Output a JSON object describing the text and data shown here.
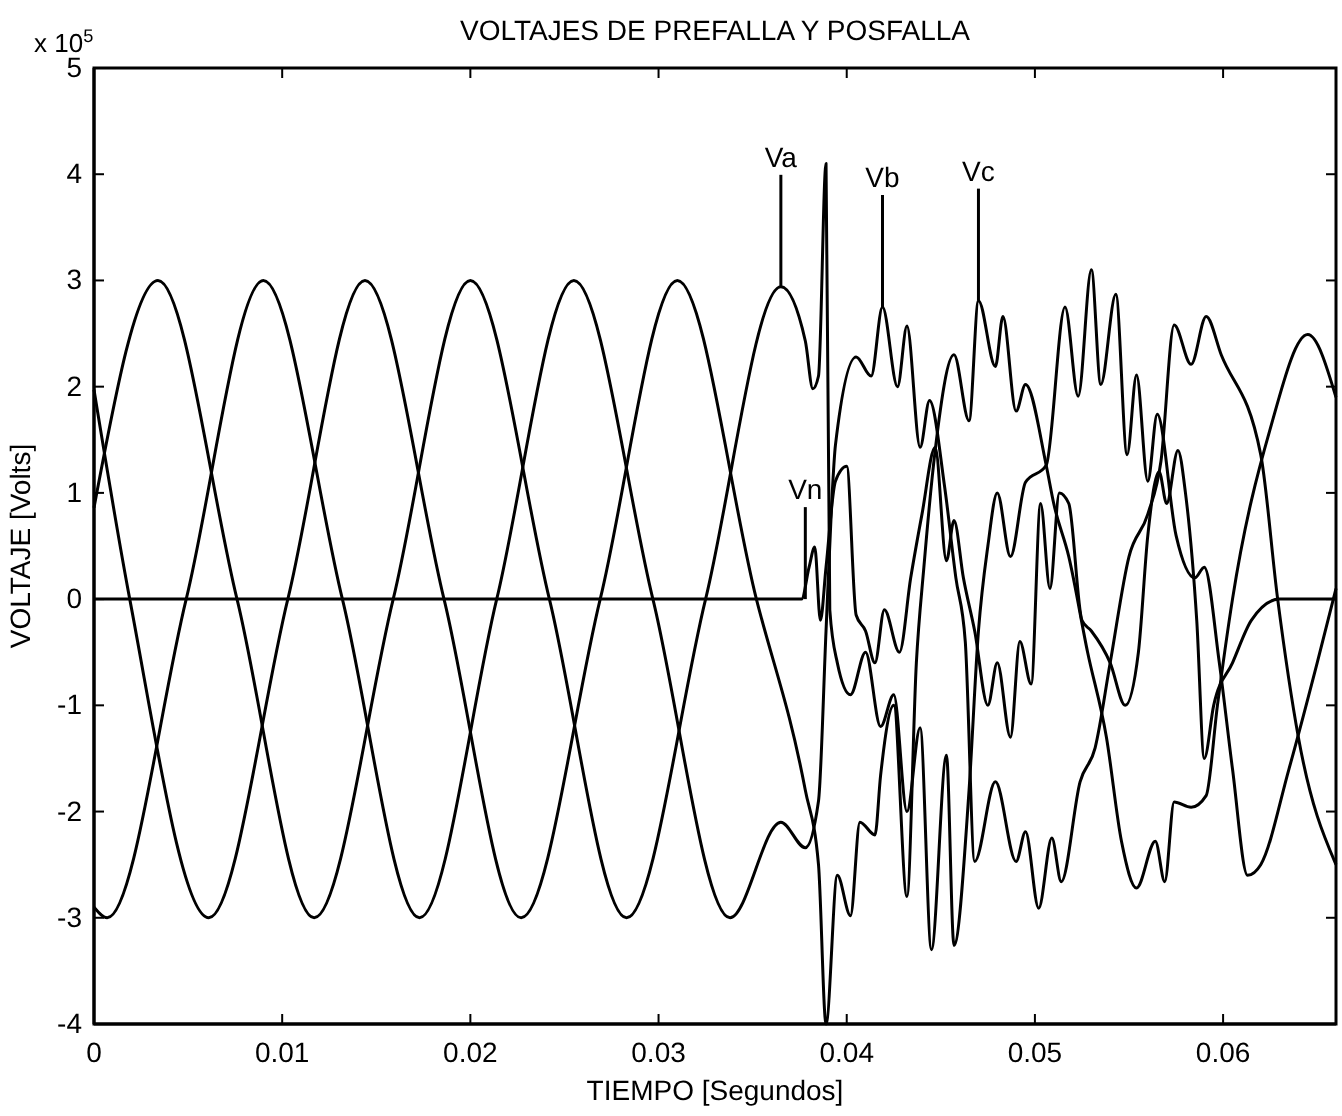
{
  "chart_data": {
    "type": "line",
    "title": "VOLTAJES DE PREFALLA Y POSFALLA",
    "xlabel": "TIEMPO [Segundos]",
    "ylabel": "VOLTAJE  [Volts]",
    "xlim": [
      0,
      0.066
    ],
    "xticks": [
      0,
      0.01,
      0.02,
      0.03,
      0.04,
      0.05,
      0.06
    ],
    "ylim": [
      -4,
      5
    ],
    "yticks": [
      -4,
      -3,
      -2,
      -1,
      0,
      1,
      2,
      3,
      4,
      5
    ],
    "marker": "none",
    "line_style": "solid",
    "annotations": [
      "x 10$^{5}$",
      {
        "text": "Va",
        "x": 0.0365,
        "y": 2.94
      },
      {
        "text": "Vb",
        "x": 0.0419,
        "y": 2.75
      },
      {
        "text": "Vc",
        "x": 0.047,
        "y": 2.81
      },
      {
        "text": "Vn",
        "x": 0.0378,
        "y": 0
      }
    ],
    "series": [
      {
        "color": "#000000",
        "x": [
          0,
          0.0034,
          0.0076,
          0.0117,
          0.0159,
          0.02,
          0.0242,
          0.0283,
          0.0325,
          0.0365,
          0.0378,
          0.0382,
          0.0385,
          0.0389,
          0.0391,
          0.0395,
          0.0402,
          0.041,
          0.0418,
          0.0425,
          0.0432,
          0.0439,
          0.0445,
          0.0453,
          0.0457,
          0.0465,
          0.047,
          0.0475,
          0.048,
          0.0487,
          0.0495,
          0.0506,
          0.0516,
          0.0523,
          0.053,
          0.0535,
          0.0543,
          0.0549,
          0.0554,
          0.056,
          0.0565,
          0.0575,
          0.0585,
          0.059,
          0.0598,
          0.0605,
          0.0613,
          0.062,
          0.0635,
          0.065,
          0.066
        ],
        "values": [
          0.86,
          3,
          0,
          -3,
          0,
          3,
          0,
          -3,
          0,
          2.94,
          2.43,
          1.98,
          2.1,
          4.1,
          -0.1,
          -0.6,
          -0.9,
          -0.5,
          -1.2,
          -0.9,
          -2.0,
          -1.21,
          -3.3,
          -1.47,
          -3.26,
          -1.8,
          -0.3,
          0.5,
          1.0,
          0.4,
          1.1,
          1.26,
          2.75,
          1.91,
          3.1,
          2.02,
          2.87,
          1.36,
          2.11,
          1.11,
          1.74,
          0.6,
          0.2,
          0.3,
          -0.6,
          -1.6,
          -2.6,
          -2.5,
          -1.6,
          -0.6,
          0.1
        ]
      },
      {
        "color": "#000000",
        "x": [
          0,
          0.0007,
          0.0049,
          0.009,
          0.0132,
          0.0173,
          0.0214,
          0.0255,
          0.0297,
          0.0338,
          0.0365,
          0.0378,
          0.0385,
          0.0389,
          0.0392,
          0.0394,
          0.0405,
          0.0413,
          0.0419,
          0.0427,
          0.0432,
          0.0439,
          0.0444,
          0.0452,
          0.0458,
          0.0463,
          0.0468,
          0.0479,
          0.049,
          0.0495,
          0.0502,
          0.0509,
          0.0514,
          0.0524,
          0.0532,
          0.054,
          0.055,
          0.056,
          0.0567,
          0.0574,
          0.0583,
          0.0591,
          0.0599,
          0.062,
          0.0629,
          0.064,
          0.066
        ],
        "values": [
          -2.9,
          -3,
          0,
          3,
          0,
          -3,
          0,
          3,
          0,
          -3,
          -2.1,
          -2.34,
          -1.9,
          -0.3,
          0.9,
          1.45,
          2.28,
          2.1,
          2.75,
          2.0,
          2.57,
          1.43,
          1.87,
          1.06,
          0.2,
          -0.4,
          -2.47,
          -1.72,
          -2.47,
          -2.19,
          -2.91,
          -2.25,
          -2.66,
          -1.72,
          -1.4,
          -0.6,
          0.4,
          0.8,
          1.3,
          2.58,
          2.21,
          2.66,
          2.3,
          1.36,
          0,
          -1.3,
          -2.5
        ]
      },
      {
        "color": "#000000",
        "x": [
          0,
          0.0019,
          0.0061,
          0.0103,
          0.0144,
          0.0186,
          0.0227,
          0.0269,
          0.031,
          0.0352,
          0.0378,
          0.0385,
          0.0389,
          0.0395,
          0.0402,
          0.0407,
          0.0415,
          0.0418,
          0.0425,
          0.0432,
          0.0437,
          0.0441,
          0.0447,
          0.0457,
          0.0465,
          0.047,
          0.0479,
          0.0483,
          0.049,
          0.0495,
          0.0506,
          0.051,
          0.0518,
          0.0528,
          0.0538,
          0.0546,
          0.0554,
          0.0564,
          0.0569,
          0.0574,
          0.0583,
          0.0591,
          0.0597,
          0.0605,
          0.0625,
          0.0645,
          0.066
        ],
        "values": [
          1.97,
          0,
          -3,
          0,
          3,
          0,
          -3,
          0,
          3,
          0,
          -1.8,
          -2.5,
          -4.0,
          -2.6,
          -2.98,
          -2.1,
          -2.22,
          -1.66,
          -1.0,
          -2.8,
          -0.6,
          0.3,
          1.4,
          2.3,
          1.68,
          2.81,
          2.19,
          2.66,
          1.77,
          2.02,
          1.26,
          0.9,
          0.4,
          -0.5,
          -1.3,
          -2.28,
          -2.72,
          -2.28,
          -2.66,
          -1.91,
          -1.96,
          -1.85,
          -1.0,
          0,
          1.6,
          2.49,
          1.9
        ]
      },
      {
        "color": "#000000",
        "x": [
          0,
          0.0376,
          0.038,
          0.0383,
          0.0386,
          0.0389,
          0.0394,
          0.04,
          0.0405,
          0.041,
          0.0415,
          0.042,
          0.0428,
          0.0434,
          0.044,
          0.0447,
          0.0453,
          0.0457,
          0.0462,
          0.0468,
          0.0475,
          0.048,
          0.0487,
          0.0492,
          0.0498,
          0.0503,
          0.0508,
          0.0513,
          0.0518,
          0.0525,
          0.053,
          0.054,
          0.0548,
          0.0555,
          0.056,
          0.0566,
          0.057,
          0.0576,
          0.058,
          0.0586,
          0.059,
          0.0595,
          0.0605,
          0.0615,
          0.063,
          0.066
        ],
        "values": [
          0,
          0,
          0.3,
          0.49,
          -0.2,
          0.3,
          1.11,
          1.25,
          -0.15,
          -0.3,
          -0.6,
          -0.1,
          -0.5,
          0.2,
          0.8,
          1.43,
          0.36,
          0.74,
          0.2,
          -0.3,
          -1.0,
          -0.6,
          -1.3,
          -0.4,
          -0.8,
          0.9,
          0.1,
          1.0,
          0.9,
          -0.2,
          -0.3,
          -0.6,
          -1.0,
          -0.5,
          0.6,
          1.2,
          0.9,
          1.4,
          1.0,
          -0.2,
          -1.5,
          -1.0,
          -0.6,
          -0.2,
          0,
          0
        ]
      }
    ]
  }
}
